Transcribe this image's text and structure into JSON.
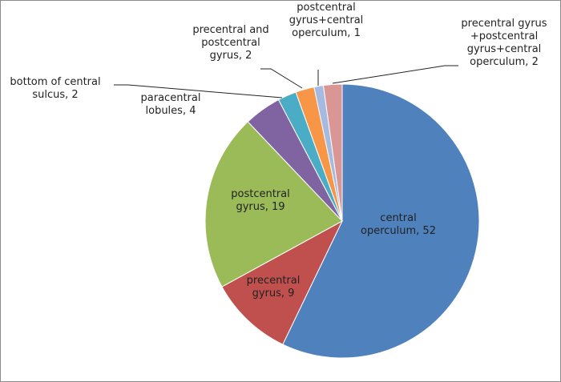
{
  "chart_data": {
    "type": "pie",
    "title": "",
    "start_angle_deg": 0,
    "direction": "clockwise",
    "slices": [
      {
        "lines": [
          "central",
          "operculum, 52"
        ],
        "category": "central operculum",
        "value": 52,
        "color": "#4f81bd"
      },
      {
        "lines": [
          "precentral",
          "gyrus, 9"
        ],
        "category": "precentral gyrus",
        "value": 9,
        "color": "#c0504d"
      },
      {
        "lines": [
          "postcentral",
          "gyrus, 19"
        ],
        "category": "postcentral gyrus",
        "value": 19,
        "color": "#9bbb59"
      },
      {
        "lines": [
          "paracentral",
          "lobules, 4"
        ],
        "category": "paracentral lobules",
        "value": 4,
        "color": "#8064a2"
      },
      {
        "lines": [
          "bottom of central",
          "sulcus, 2"
        ],
        "category": "bottom of central sulcus",
        "value": 2,
        "color": "#4bacc6"
      },
      {
        "lines": [
          "precentral and",
          "postcentral",
          "gyrus, 2"
        ],
        "category": "precentral and postcentral gyrus",
        "value": 2,
        "color": "#f79646"
      },
      {
        "lines": [
          "postcentral",
          "gyrus+central",
          "operculum, 1"
        ],
        "category": "postcentral gyrus+central operculum",
        "value": 1,
        "color": "#a6b9e0"
      },
      {
        "lines": [
          "precentral gyrus",
          "+postcentral",
          "gyrus+central",
          "operculum, 2"
        ],
        "category": "precentral gyrus+postcentral gyrus+central operculum",
        "value": 2,
        "color": "#d99694"
      }
    ]
  }
}
